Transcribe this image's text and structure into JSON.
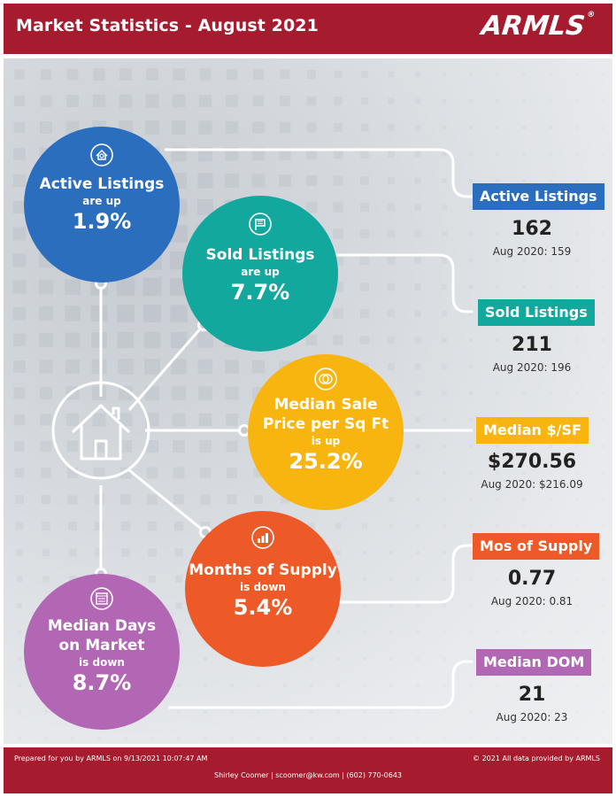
{
  "header": {
    "title": "Market Statistics - August 2021",
    "logo": "ARMLS",
    "logo_mark": "®"
  },
  "colors": {
    "brand": "#a61c2e",
    "active": "#2a6ebd",
    "sold": "#13a89e",
    "price": "#f8b50f",
    "supply": "#ee5a27",
    "dom": "#b267b4"
  },
  "circles": {
    "active": {
      "title": "Active Listings",
      "dir": "are up",
      "pct": "1.9%",
      "icon": "house-search-icon"
    },
    "sold": {
      "title": "Sold Listings",
      "dir": "are up",
      "pct": "7.7%",
      "icon": "sold-sign-icon"
    },
    "price": {
      "title1": "Median Sale",
      "title2": "Price per Sq Ft",
      "dir": "is up",
      "pct": "25.2%",
      "icon": "money-icon"
    },
    "supply": {
      "title": "Months of Supply",
      "dir": "is down",
      "pct": "5.4%",
      "icon": "bar-chart-icon"
    },
    "dom": {
      "title1": "Median Days",
      "title2": "on Market",
      "dir": "is down",
      "pct": "8.7%",
      "icon": "calendar-icon"
    }
  },
  "stats": [
    {
      "label": "Active Listings",
      "value": "162",
      "prior": "Aug 2020: 159"
    },
    {
      "label": "Sold Listings",
      "value": "211",
      "prior": "Aug 2020: 196"
    },
    {
      "label": "Median $/SF",
      "value": "$270.56",
      "prior": "Aug 2020: $216.09"
    },
    {
      "label": "Mos of Supply",
      "value": "0.77",
      "prior": "Aug 2020: 0.81"
    },
    {
      "label": "Median DOM",
      "value": "21",
      "prior": "Aug 2020: 23"
    }
  ],
  "footer": {
    "prepared": "Prepared for you by ARMLS on 9/13/2021 10:07:47 AM",
    "copyright": "© 2021 All data provided by ARMLS",
    "contact": "Shirley Coomer | scoomer@kw.com | (602) 770-0643"
  }
}
